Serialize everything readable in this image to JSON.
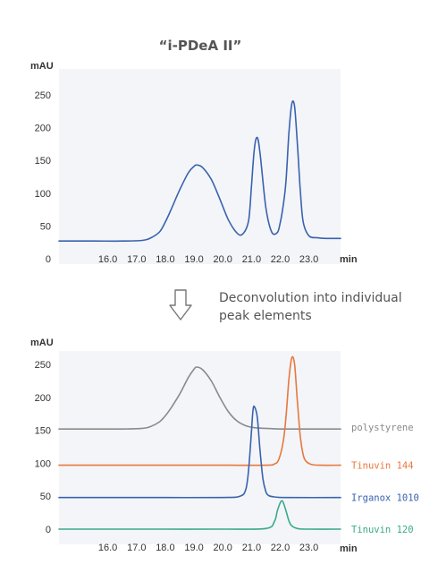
{
  "chart_data": [
    {
      "type": "line",
      "title": "“i-PDeA II”",
      "ylabel": "mAU",
      "xlabel": "min",
      "xlim": [
        14.3,
        24.1
      ],
      "ylim": [
        0,
        280
      ],
      "xticks": [
        "16.0",
        "17.0",
        "18.0",
        "19.0",
        "20.0",
        "21.0",
        "22.0",
        "23.0"
      ],
      "yticks": [
        "0",
        "50",
        "100",
        "150",
        "200",
        "250"
      ],
      "grid": false,
      "series": [
        {
          "color": "#3a62ad",
          "x": [
            14.3,
            15.5,
            16.5,
            17.2,
            17.5,
            17.8,
            18.0,
            18.2,
            18.5,
            18.8,
            19.0,
            19.1,
            19.3,
            19.6,
            19.9,
            20.2,
            20.5,
            20.7,
            20.9,
            21.0,
            21.1,
            21.2,
            21.3,
            21.5,
            21.7,
            21.9,
            22.0,
            22.1,
            22.2,
            22.3,
            22.4,
            22.5,
            22.6,
            22.7,
            22.8,
            23.0,
            23.3,
            23.6,
            24.1
          ],
          "y": [
            27,
            27,
            27,
            28,
            32,
            41,
            56,
            75,
            105,
            131,
            141,
            143,
            139,
            121,
            91,
            59,
            39,
            38,
            58,
            112,
            168,
            185,
            160,
            78,
            41,
            40,
            55,
            80,
            118,
            190,
            236,
            232,
            173,
            103,
            56,
            35,
            32,
            31,
            31
          ]
        }
      ]
    },
    {
      "type": "line",
      "ylabel": "mAU",
      "xlabel": "min",
      "xlim": [
        14.3,
        24.1
      ],
      "ylim": [
        0,
        280
      ],
      "xticks": [
        "16.0",
        "17.0",
        "18.0",
        "19.0",
        "20.0",
        "21.0",
        "22.0",
        "23.0"
      ],
      "yticks": [
        "0",
        "50",
        "100",
        "150",
        "200",
        "250"
      ],
      "grid": false,
      "series": [
        {
          "name": "polystyrene",
          "color": "#8a8a8a",
          "x": [
            14.3,
            15.5,
            16.5,
            17.2,
            17.5,
            17.8,
            18.0,
            18.2,
            18.5,
            18.8,
            19.0,
            19.1,
            19.3,
            19.6,
            19.9,
            20.2,
            20.5,
            20.8,
            21.1,
            21.5,
            22.0,
            23.0,
            24.1
          ],
          "y": [
            152,
            152,
            152,
            153,
            156,
            163,
            172,
            184,
            205,
            230,
            243,
            246,
            242,
            225,
            200,
            178,
            164,
            157,
            154,
            153,
            152,
            152,
            152
          ]
        },
        {
          "name": "Tinuvin 144",
          "color": "#e8783c",
          "x": [
            14.3,
            16.0,
            18.0,
            20.0,
            21.5,
            21.8,
            21.95,
            22.1,
            22.2,
            22.3,
            22.4,
            22.5,
            22.6,
            22.7,
            22.8,
            22.9,
            23.1,
            23.4,
            24.1
          ],
          "y": [
            97,
            97,
            97,
            97,
            97,
            99,
            106,
            132,
            170,
            226,
            260,
            250,
            192,
            140,
            113,
            103,
            98,
            97,
            97
          ]
        },
        {
          "name": "Irganox 1010",
          "color": "#3a62ad",
          "x": [
            14.3,
            16.0,
            18.0,
            20.0,
            20.6,
            20.8,
            20.9,
            21.0,
            21.05,
            21.1,
            21.2,
            21.3,
            21.4,
            21.5,
            21.6,
            21.8,
            22.2,
            24.1
          ],
          "y": [
            48,
            48,
            48,
            48,
            50,
            60,
            90,
            150,
            180,
            186,
            170,
            118,
            76,
            57,
            51,
            49,
            48,
            48
          ]
        },
        {
          "name": "Tinuvin 120",
          "color": "#3aaa8a",
          "x": [
            14.3,
            16.0,
            18.0,
            20.0,
            21.5,
            21.8,
            21.9,
            22.0,
            22.05,
            22.1,
            22.2,
            22.3,
            22.4,
            22.6,
            22.9,
            24.1
          ],
          "y": [
            0,
            0,
            0,
            0,
            1,
            12,
            28,
            40,
            43,
            41,
            28,
            13,
            5,
            1,
            0,
            0
          ]
        }
      ]
    }
  ],
  "annotation": {
    "line1": "Deconvolution into individual",
    "line2": "peak elements"
  }
}
